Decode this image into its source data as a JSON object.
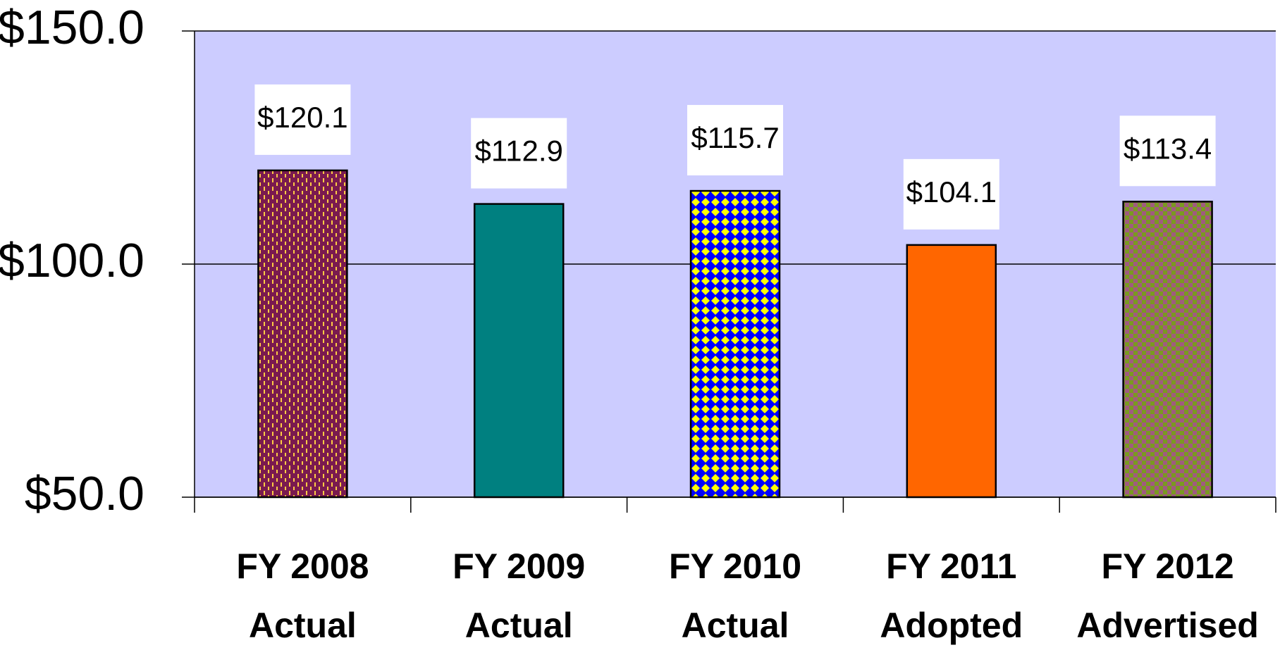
{
  "chart_data": {
    "type": "bar",
    "categories": [
      [
        "FY 2008",
        "Actual"
      ],
      [
        "FY 2009",
        "Actual"
      ],
      [
        "FY 2010",
        "Actual"
      ],
      [
        "FY 2011",
        "Adopted"
      ],
      [
        "FY 2012",
        "Advertised"
      ]
    ],
    "values": [
      120.1,
      112.9,
      115.7,
      104.1,
      113.4
    ],
    "value_labels": [
      "$120.1",
      "$112.9",
      "$115.7",
      "$104.1",
      "$113.4"
    ],
    "colors": [
      "#7a1a4f",
      "#008080",
      "#0000ff",
      "#ff6600",
      "#7a9a20"
    ],
    "patterns": [
      {
        "type": "dashes",
        "color": "#ffcc44"
      },
      {
        "type": "solid"
      },
      {
        "type": "diamonds",
        "color": "#ffff00"
      },
      {
        "type": "solid"
      },
      {
        "type": "checker",
        "color": "#a05a80"
      }
    ],
    "ylim": [
      50,
      150
    ],
    "yticks": [
      {
        "value": 50,
        "label": "$50.0"
      },
      {
        "value": 100,
        "label": "$100.0"
      },
      {
        "value": 150,
        "label": "$150.0"
      }
    ],
    "grid": true,
    "plot_background": "#ccccff"
  }
}
